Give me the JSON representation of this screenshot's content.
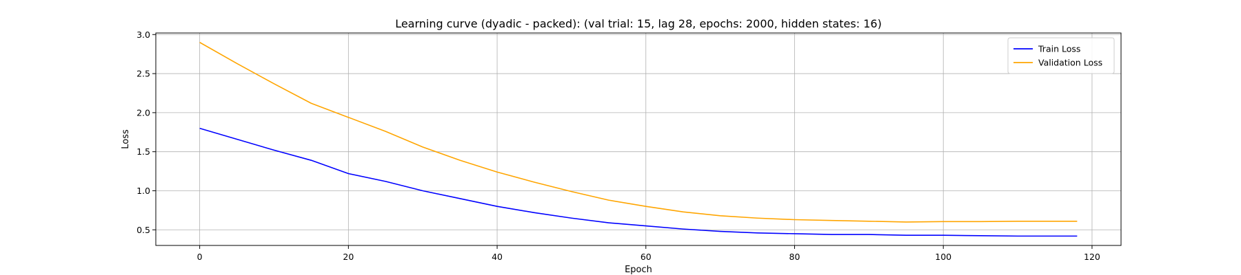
{
  "chart_data": {
    "type": "line",
    "title": "Learning curve (dyadic - packed): (val trial: 15, lag 28, epochs: 2000, hidden states: 16)",
    "xlabel": "Epoch",
    "ylabel": "Loss",
    "xlim": [
      -5.9,
      123.9
    ],
    "ylim": [
      0.3,
      3.02
    ],
    "xticks": [
      "0",
      "20",
      "40",
      "60",
      "80",
      "100",
      "120"
    ],
    "yticks": [
      "0.5",
      "1.0",
      "1.5",
      "2.0",
      "2.5",
      "3.0"
    ],
    "grid": true,
    "legend_position": "upper-right",
    "x": [
      0,
      5,
      10,
      15,
      20,
      25,
      30,
      35,
      40,
      45,
      50,
      55,
      60,
      65,
      70,
      75,
      80,
      85,
      90,
      95,
      100,
      105,
      110,
      115,
      118
    ],
    "series": [
      {
        "name": "Train Loss",
        "color": "#0000ff",
        "values": [
          1.8,
          1.66,
          1.52,
          1.39,
          1.22,
          1.12,
          1.0,
          0.9,
          0.8,
          0.72,
          0.65,
          0.59,
          0.55,
          0.51,
          0.48,
          0.46,
          0.45,
          0.44,
          0.44,
          0.43,
          0.43,
          0.425,
          0.42,
          0.42,
          0.42
        ]
      },
      {
        "name": "Validation Loss",
        "color": "#ffa500",
        "values": [
          2.9,
          2.63,
          2.37,
          2.12,
          1.94,
          1.76,
          1.56,
          1.39,
          1.24,
          1.11,
          0.99,
          0.88,
          0.8,
          0.73,
          0.68,
          0.65,
          0.63,
          0.62,
          0.61,
          0.6,
          0.605,
          0.605,
          0.61,
          0.61,
          0.61
        ]
      }
    ]
  }
}
